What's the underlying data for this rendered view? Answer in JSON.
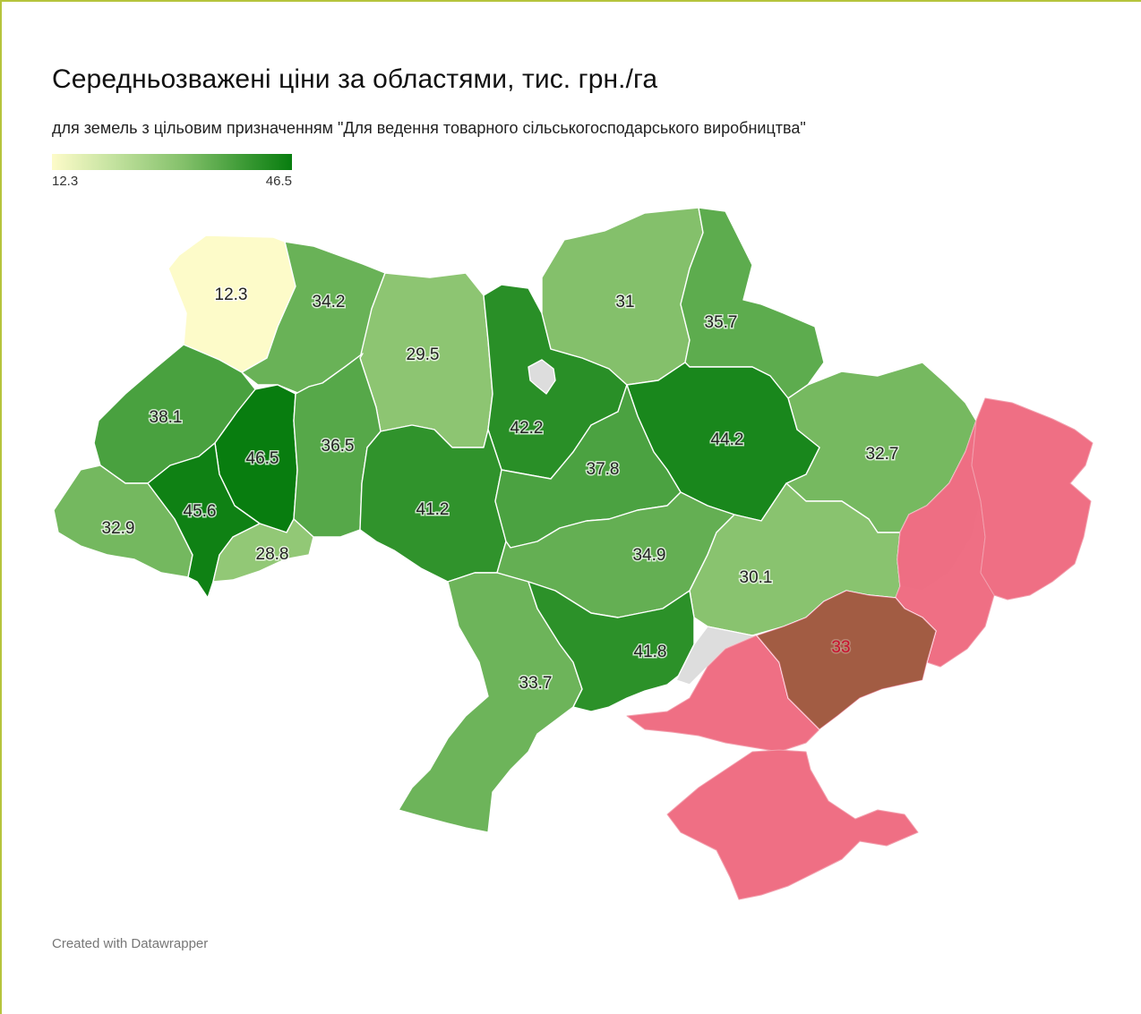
{
  "title": "Середньозважені ціни за областями, тис. грн./га",
  "subtitle": "для земель з цільовим призначенням \"Для ведення товарного сільськогосподарського виробництва\"",
  "legend": {
    "min": "12.3",
    "max": "46.5",
    "min_color": "#fdfbc9",
    "max_color": "#087d0f"
  },
  "credit": "Created with Datawrapper",
  "colors": {
    "occupied": "#ee6a80",
    "no_data": "#dddddd",
    "frame": "#b6c43c"
  },
  "regions": [
    {
      "id": "volyn",
      "label": "12.3",
      "value": 12.3
    },
    {
      "id": "rivne",
      "label": "34.2",
      "value": 34.2
    },
    {
      "id": "zhytomyr",
      "label": "29.5",
      "value": 29.5
    },
    {
      "id": "kyiv-oblast",
      "label": "42.2",
      "value": 42.2
    },
    {
      "id": "kyiv-city",
      "label": "",
      "value": null,
      "status": "no-data"
    },
    {
      "id": "chernihiv",
      "label": "31",
      "value": 31
    },
    {
      "id": "sumy",
      "label": "35.7",
      "value": 35.7
    },
    {
      "id": "kharkiv",
      "label": "32.7",
      "value": 32.7
    },
    {
      "id": "poltava",
      "label": "44.2",
      "value": 44.2
    },
    {
      "id": "lviv",
      "label": "38.1",
      "value": 38.1
    },
    {
      "id": "ternopil",
      "label": "46.5",
      "value": 46.5
    },
    {
      "id": "khmelnytskyi",
      "label": "36.5",
      "value": 36.5
    },
    {
      "id": "vinnytsia",
      "label": "41.2",
      "value": 41.2
    },
    {
      "id": "cherkasy",
      "label": "37.8",
      "value": 37.8
    },
    {
      "id": "zakarpattia",
      "label": "32.9",
      "value": 32.9
    },
    {
      "id": "ivano-frankivsk",
      "label": "45.6",
      "value": 45.6
    },
    {
      "id": "chernivtsi",
      "label": "28.8",
      "value": 28.8
    },
    {
      "id": "kirovohrad",
      "label": "34.9",
      "value": 34.9
    },
    {
      "id": "dnipropetrovsk",
      "label": "30.1",
      "value": 30.1
    },
    {
      "id": "odesa",
      "label": "33.7",
      "value": 33.7
    },
    {
      "id": "mykolaiv",
      "label": "41.8",
      "value": 41.8
    },
    {
      "id": "zaporizhzhia",
      "label": "33",
      "value": 33
    },
    {
      "id": "kherson",
      "label": "",
      "value": null,
      "status": "occupied"
    },
    {
      "id": "crimea",
      "label": "",
      "value": null,
      "status": "occupied"
    },
    {
      "id": "donetsk",
      "label": "",
      "value": null,
      "status": "occupied"
    },
    {
      "id": "luhansk",
      "label": "",
      "value": null,
      "status": "occupied"
    },
    {
      "id": "donetsk-free",
      "label": "",
      "value": null,
      "status": "no-data"
    },
    {
      "id": "kherson-free",
      "label": "",
      "value": null,
      "status": "no-data"
    }
  ]
}
